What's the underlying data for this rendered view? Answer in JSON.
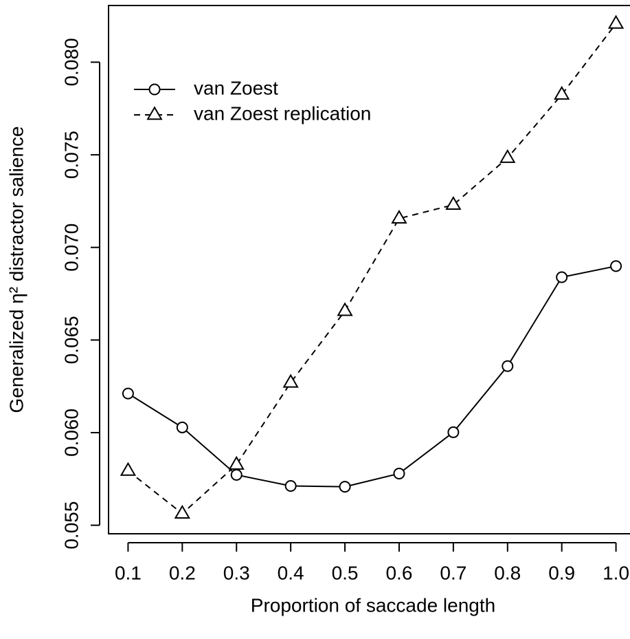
{
  "chart_data": {
    "type": "line",
    "xlabel": "Proportion of saccade length",
    "ylabel": "Generalized η² distractor salience",
    "x": [
      0.1,
      0.2,
      0.3,
      0.4,
      0.5,
      0.6,
      0.7,
      0.8,
      0.9,
      {
        "value": 1.0,
        "label": "1.0"
      }
    ],
    "series": [
      {
        "name": "van Zoest",
        "color": "#000000",
        "marker": "circle",
        "dash": "solid",
        "values": [
          0.06211,
          0.06028,
          0.05772,
          0.05712,
          0.05708,
          0.05779,
          0.06002,
          0.06359,
          0.06839,
          0.06899
        ]
      },
      {
        "name": "van Zoest replication",
        "color": "#000000",
        "marker": "triangle",
        "dash": "dashed",
        "values": [
          0.05794,
          0.05563,
          0.05827,
          0.0627,
          0.06657,
          0.07156,
          0.0723,
          0.07483,
          0.07825,
          0.08208
        ]
      }
    ],
    "xlim": [
      0.064,
      1.036
    ],
    "ylim": [
      0.05454,
      0.08306
    ],
    "xticks": [
      0.1,
      0.2,
      0.3,
      0.4,
      0.5,
      0.6,
      0.7,
      0.8,
      0.9,
      {
        "value": 1.0,
        "label": "1.0"
      }
    ],
    "yticks": [
      0.055,
      {
        "value": 0.06,
        "label": "0.060"
      },
      0.065,
      {
        "value": 0.07,
        "label": "0.070"
      },
      0.075,
      {
        "value": 0.08,
        "label": "0.080"
      }
    ],
    "legend": "top-left",
    "grid": false
  }
}
